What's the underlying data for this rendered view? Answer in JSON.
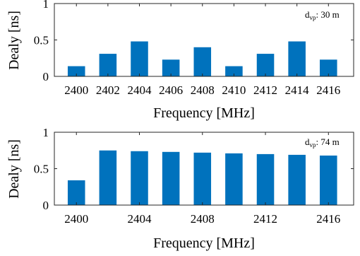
{
  "chart_data": [
    {
      "type": "bar",
      "categories": [
        2400,
        2402,
        2404,
        2406,
        2408,
        2410,
        2412,
        2414,
        2416
      ],
      "values": [
        0.14,
        0.31,
        0.48,
        0.23,
        0.4,
        0.14,
        0.31,
        0.48,
        0.23
      ],
      "xlabel": "Frequency [MHz]",
      "ylabel": "Dealy [ns]",
      "ylim": [
        0,
        1
      ],
      "xlim": [
        2398.6,
        2417.6
      ],
      "yticks": [
        0,
        0.5,
        1
      ],
      "yticklabels": [
        "0",
        "0.5",
        "1"
      ],
      "xticks": [
        2400,
        2402,
        2404,
        2406,
        2408,
        2410,
        2412,
        2414,
        2416
      ],
      "annotation": {
        "main": "d",
        "sub": "vp",
        "rest": ": 30 m"
      },
      "bar_color": "#0072BD",
      "grid": false,
      "legend": "none"
    },
    {
      "type": "bar",
      "categories": [
        2400,
        2402,
        2404,
        2406,
        2408,
        2410,
        2412,
        2414,
        2416
      ],
      "values": [
        0.34,
        0.75,
        0.74,
        0.73,
        0.72,
        0.71,
        0.7,
        0.69,
        0.68
      ],
      "xlabel": "Frequency [MHz]",
      "ylabel": "Dealy [ns]",
      "ylim": [
        0,
        1
      ],
      "xlim": [
        2398.6,
        2417.6
      ],
      "yticks": [
        0,
        0.5,
        1
      ],
      "yticklabels": [
        "0",
        "0.5",
        "1"
      ],
      "xticks": [
        2400,
        2404,
        2408,
        2412,
        2416
      ],
      "annotation": {
        "main": "d",
        "sub": "vp",
        "rest": ": 74 m"
      },
      "bar_color": "#0072BD",
      "grid": false,
      "legend": "none"
    }
  ]
}
